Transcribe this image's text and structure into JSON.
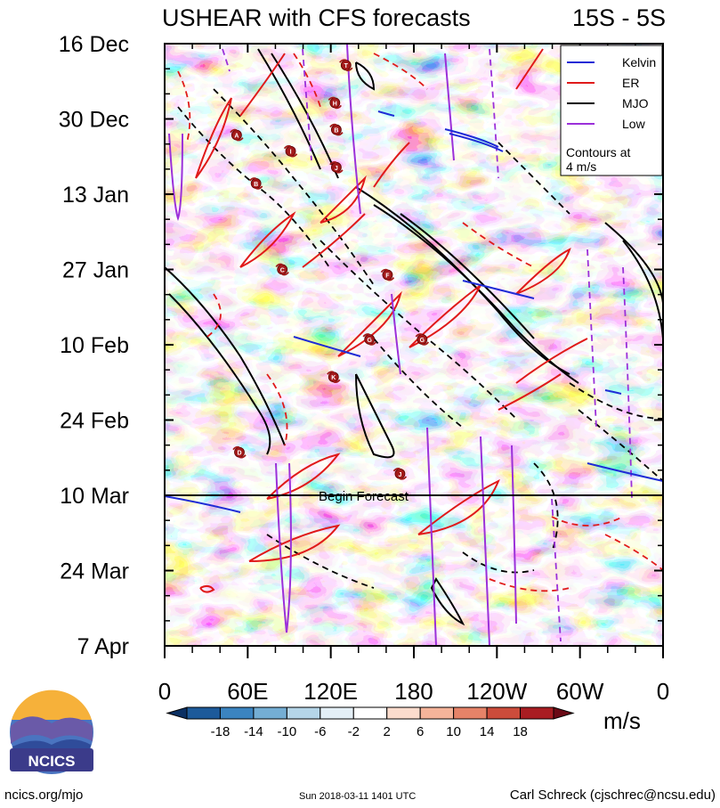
{
  "chart_data": {
    "type": "heatmap",
    "title": "USHEAR with CFS forecasts",
    "region": "15S - 5S",
    "y_ticks": [
      "16 Dec",
      "30 Dec",
      "13 Jan",
      "27 Jan",
      "10 Feb",
      "24 Feb",
      "10 Mar",
      "24 Mar",
      "7 Apr"
    ],
    "x_ticks": [
      "0",
      "60E",
      "120E",
      "180",
      "120W",
      "60W",
      "0"
    ],
    "xlim": [
      0,
      360
    ],
    "forecast_label": "Begin Forecast",
    "forecast_start": "10 Mar",
    "legend": [
      {
        "name": "Kelvin",
        "color": "#1f2bd6"
      },
      {
        "name": "ER",
        "color": "#e01a1a"
      },
      {
        "name": "MJO",
        "color": "#000000"
      },
      {
        "name": "Low",
        "color": "#9b30d9"
      }
    ],
    "legend_note_1": "Contours at",
    "legend_note_2": "4 m/s",
    "colorbar": {
      "unit": "m/s",
      "labels": [
        "-18",
        "-14",
        "-10",
        "-6",
        "-2",
        "2",
        "6",
        "10",
        "14",
        "18"
      ],
      "colors": [
        "#0b3063",
        "#1d5a9a",
        "#3b84c0",
        "#74aed4",
        "#b5d5e8",
        "#e4eff6",
        "#ffffff",
        "#fbdccd",
        "#f5b49a",
        "#e68368",
        "#cc4c3b",
        "#a91d22",
        "#6b0a16"
      ]
    },
    "storms": [
      {
        "label": "T",
        "lon": 131,
        "date": "20 Dec"
      },
      {
        "label": "H",
        "lon": 123,
        "date": "27 Dec"
      },
      {
        "label": "B",
        "lon": 124,
        "date": "1 Jan"
      },
      {
        "label": "A",
        "lon": 52,
        "date": "2 Jan"
      },
      {
        "label": "I",
        "lon": 91,
        "date": "5 Jan"
      },
      {
        "label": "J",
        "lon": 124,
        "date": "8 Jan"
      },
      {
        "label": "B",
        "lon": 66,
        "date": "11 Jan"
      },
      {
        "label": "C",
        "lon": 85,
        "date": "27 Jan"
      },
      {
        "label": "F",
        "lon": 161,
        "date": "28 Jan"
      },
      {
        "label": "G",
        "lon": 148,
        "date": "9 Feb"
      },
      {
        "label": "G",
        "lon": 186,
        "date": "9 Feb"
      },
      {
        "label": "K",
        "lon": 122,
        "date": "16 Feb"
      },
      {
        "label": "D",
        "lon": 54,
        "date": "2 Mar"
      },
      {
        "label": "J",
        "lon": 170,
        "date": "6 Mar"
      }
    ],
    "footer_left": "ncics.org/mjo",
    "footer_center": "Sun 2018-03-11 1401 UTC",
    "footer_right": "Carl Schreck (cjschrec@ncsu.edu)",
    "logo_text": "NCICS"
  }
}
